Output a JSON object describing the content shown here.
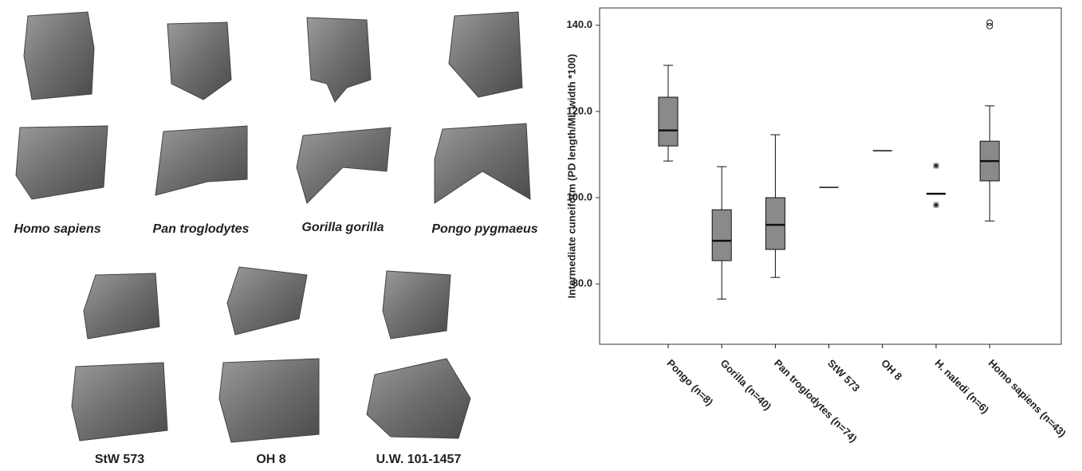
{
  "figure": {
    "row1_labels": [
      "Homo sapiens",
      "Pan troglodytes",
      "Gorilla gorilla",
      "Pongo pygmaeus"
    ],
    "row2_labels": [
      "StW 573",
      "OH 8",
      "U.W. 101-1457"
    ]
  },
  "chart_data": {
    "type": "box",
    "y_label": "Intermediate cuneiform (PD length/ML width *100)",
    "categories": [
      "Pongo (n=8)",
      "Gorilla (n=40)",
      "Pan troglodytes (n=74)",
      "StW 573",
      "OH 8",
      "H. naledi (n=6)",
      "Homo sapiens (n=43)"
    ],
    "boxes": [
      {
        "min": 108.5,
        "q1": 112.0,
        "median": 115.6,
        "q3": 123.3,
        "max": 130.7
      },
      {
        "min": 76.5,
        "q1": 85.4,
        "median": 90.0,
        "q3": 97.2,
        "max": 107.2
      },
      {
        "min": 81.5,
        "q1": 88.0,
        "median": 93.7,
        "q3": 100.0,
        "max": 114.6
      },
      {
        "value": 102.4
      },
      {
        "value": 110.9
      },
      {
        "median": 100.9,
        "outliers": [
          107.4,
          98.3
        ]
      },
      {
        "min": 94.6,
        "q1": 103.9,
        "median": 108.5,
        "q3": 113.1,
        "max": 121.3,
        "outliers": [
          140.6,
          139.8
        ]
      }
    ],
    "color": "#8a8a8a",
    "ylim": [
      66,
      144
    ],
    "yticks": [
      {
        "value": 80,
        "label": "80.0"
      },
      {
        "value": 100,
        "label": "100.0"
      },
      {
        "value": 120,
        "label": "120.0"
      },
      {
        "value": 140,
        "label": "140.0"
      }
    ]
  }
}
